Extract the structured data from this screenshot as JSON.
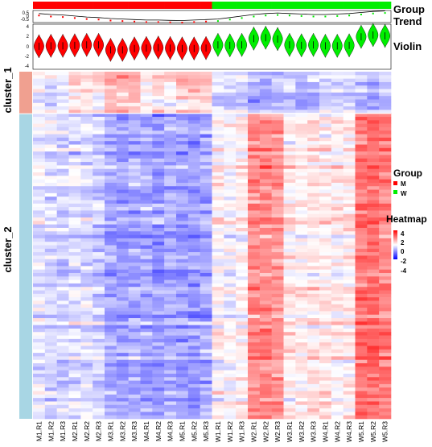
{
  "tracks": {
    "group": "Group",
    "trend": "Trend",
    "violin": "Violin"
  },
  "trend_ticks": [
    "0.5",
    "0",
    "-0.5"
  ],
  "violin_ticks": [
    "4",
    "2",
    "0",
    "-2",
    "-4"
  ],
  "clusters": [
    {
      "label": "cluster_1",
      "color": "#f0a090",
      "rows": 12
    },
    {
      "label": "cluster_2",
      "color": "#a8d6e4",
      "rows": 88
    }
  ],
  "columns": [
    "M1.R1",
    "M1.R2",
    "M1.R3",
    "M2.R1",
    "M2.R2",
    "M2.R3",
    "M3.R1",
    "M3.R2",
    "M3.R3",
    "M4.R1",
    "M4.R2",
    "M4.R3",
    "M5.R1",
    "M5.R2",
    "M5.R3",
    "W1.R1",
    "W1.R2",
    "W1.R3",
    "W2.R1",
    "W2.R2",
    "W2.R3",
    "W3.R1",
    "W3.R2",
    "W3.R3",
    "W4.R1",
    "W4.R2",
    "W4.R3",
    "W5.R1",
    "W5.R2",
    "W5.R3"
  ],
  "legend_group": {
    "title": "Group",
    "items": [
      {
        "label": "M",
        "color": "#ff0000"
      },
      {
        "label": "W",
        "color": "#00ee00"
      }
    ]
  },
  "legend_heatmap": {
    "title": "Heatmap",
    "ticks": [
      "4",
      "2",
      "0",
      "-2",
      "-4"
    ]
  },
  "chart_data": {
    "type": "heatmap",
    "value_range": [
      -4,
      4
    ],
    "colors": {
      "low": "#0000ff",
      "mid": "#ffffff",
      "high": "#ff0000",
      "M": "#ff0000",
      "W": "#00ee00"
    },
    "group_of_column": [
      "M",
      "M",
      "M",
      "M",
      "M",
      "M",
      "M",
      "M",
      "M",
      "M",
      "M",
      "M",
      "M",
      "M",
      "M",
      "W",
      "W",
      "W",
      "W",
      "W",
      "W",
      "W",
      "W",
      "W",
      "W",
      "W",
      "W",
      "W",
      "W",
      "W"
    ],
    "trend": {
      "ylim": [
        -0.6,
        0.6
      ],
      "values": [
        0.3,
        0.2,
        0.15,
        0.05,
        -0.05,
        -0.1,
        -0.2,
        -0.25,
        -0.3,
        -0.35,
        -0.35,
        -0.38,
        -0.4,
        -0.35,
        -0.3,
        -0.25,
        -0.1,
        0.05,
        0.2,
        0.3,
        0.35,
        0.3,
        0.25,
        0.2,
        0.2,
        0.25,
        0.3,
        0.4,
        0.5,
        0.55
      ]
    },
    "violin": {
      "ylim": [
        -5,
        5
      ],
      "medians": [
        0.1,
        0.2,
        0.2,
        0.3,
        0.4,
        0.4,
        -0.7,
        -0.7,
        -0.4,
        -0.3,
        -0.2,
        -0.3,
        -0.4,
        -0.4,
        -0.3,
        0.4,
        0.3,
        0.4,
        1.8,
        2.0,
        1.7,
        0.4,
        0.3,
        0.4,
        0.2,
        0.2,
        0.3,
        2.2,
        2.6,
        2.4
      ]
    },
    "cluster_1": {
      "rows": 12,
      "column_means": [
        -0.3,
        -0.3,
        -0.4,
        0.5,
        0.5,
        0.5,
        1.2,
        1.2,
        1.0,
        0.4,
        0.5,
        0.3,
        0.9,
        0.8,
        0.7,
        -0.4,
        -0.7,
        -0.6,
        -1.3,
        -1.2,
        -1.0,
        -1.0,
        -1.3,
        -0.9,
        -0.6,
        -0.4,
        -0.6,
        -1.0,
        -1.1,
        -0.9
      ]
    },
    "cluster_2": {
      "rows": 88,
      "column_means": [
        -0.4,
        -0.6,
        -0.7,
        -0.5,
        -0.6,
        -0.8,
        -1.4,
        -1.5,
        -1.3,
        -1.4,
        -1.6,
        -1.3,
        -1.5,
        -1.6,
        -1.4,
        0.1,
        -0.1,
        0.2,
        1.8,
        1.9,
        1.6,
        0.3,
        0.2,
        0.4,
        0.3,
        0.2,
        0.3,
        2.2,
        2.3,
        2.0
      ]
    }
  }
}
